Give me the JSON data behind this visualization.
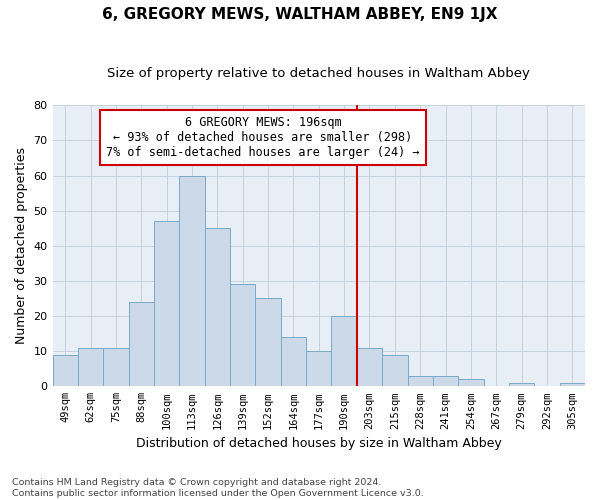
{
  "title": "6, GREGORY MEWS, WALTHAM ABBEY, EN9 1JX",
  "subtitle": "Size of property relative to detached houses in Waltham Abbey",
  "xlabel": "Distribution of detached houses by size in Waltham Abbey",
  "ylabel": "Number of detached properties",
  "bar_labels": [
    "49sqm",
    "62sqm",
    "75sqm",
    "88sqm",
    "100sqm",
    "113sqm",
    "126sqm",
    "139sqm",
    "152sqm",
    "164sqm",
    "177sqm",
    "190sqm",
    "203sqm",
    "215sqm",
    "228sqm",
    "241sqm",
    "254sqm",
    "267sqm",
    "279sqm",
    "292sqm",
    "305sqm"
  ],
  "bar_values": [
    9,
    11,
    11,
    24,
    47,
    60,
    45,
    29,
    25,
    14,
    10,
    20,
    11,
    9,
    3,
    3,
    2,
    0,
    1,
    0,
    1
  ],
  "bar_color": "#ccd9e8",
  "bar_edge_color": "#7aaac8",
  "grid_color": "#c5d3df",
  "background_color": "#e8eef5",
  "vline_color": "#cc0000",
  "annotation_text": "6 GREGORY MEWS: 196sqm\n← 93% of detached houses are smaller (298)\n7% of semi-detached houses are larger (24) →",
  "annotation_box_color": "#cc0000",
  "ylim": [
    0,
    80
  ],
  "yticks": [
    0,
    10,
    20,
    30,
    40,
    50,
    60,
    70,
    80
  ],
  "footnote": "Contains HM Land Registry data © Crown copyright and database right 2024.\nContains public sector information licensed under the Open Government Licence v3.0.",
  "title_fontsize": 11,
  "subtitle_fontsize": 9.5,
  "xlabel_fontsize": 9,
  "ylabel_fontsize": 9,
  "tick_fontsize": 7.5,
  "annotation_fontsize": 8.5,
  "footnote_fontsize": 6.8
}
